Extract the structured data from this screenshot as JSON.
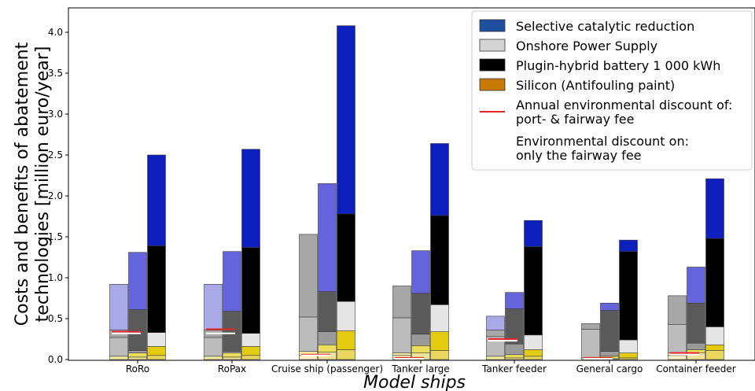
{
  "chart_data": {
    "type": "bar",
    "title": "",
    "xlabel": "Model ships",
    "ylabel_lines": [
      "Costs and benefits of abatement",
      "technologies [million euro/year]"
    ],
    "ylim": [
      0,
      4.15
    ],
    "yticks": [
      0.0,
      0.5,
      1.0,
      1.5,
      2.0,
      2.5,
      3.0,
      3.5,
      4.0
    ],
    "ytick_labels": [
      "0.0",
      "0.5",
      "1.0",
      "1.5",
      "2.0",
      "2.5",
      "3.0",
      "3.5",
      "4.0"
    ],
    "grid": false,
    "legend_position": "top-right",
    "categories": [
      "RoRo",
      "RoPax",
      "Cruise ship (passenger)",
      "Tanker large",
      "Tanker feeder",
      "General cargo",
      "Container feeder"
    ],
    "bar_order": [
      "Silicon (Antifouling paint)",
      "Onshore Power Supply",
      "Plugin-hybrid battery 1 000 kWh",
      "Selective catalytic reduction"
    ],
    "series": [
      {
        "name": "Silicon (Antifouling paint)",
        "segments": [
          {
            "tones": [
              "#f6f0c2",
              "#efe39a",
              "#e8d65e"
            ],
            "tops": [
              [
                0.0,
                0.03,
                0.05
              ],
              [
                0.0,
                0.03,
                0.05
              ],
              [
                0.05,
                0.09,
                0.12
              ],
              [
                0.05,
                0.08,
                0.11
              ],
              [
                0.0,
                0.02,
                0.04
              ],
              [
                0.0,
                0.01,
                0.02
              ],
              [
                0.05,
                0.08,
                0.11
              ]
            ]
          },
          {
            "tones": [
              "#f3ec9e",
              "#ecde5a",
              "#e3cb10"
            ],
            "tops": [
              [
                0.04,
                0.08,
                0.16
              ],
              [
                0.04,
                0.08,
                0.16
              ],
              [
                0.1,
                0.18,
                0.35
              ],
              [
                0.08,
                0.17,
                0.34
              ],
              [
                0.04,
                0.06,
                0.12
              ],
              [
                0.02,
                0.04,
                0.08
              ],
              [
                0.08,
                0.12,
                0.18
              ]
            ]
          }
        ]
      },
      {
        "name": "Onshore Power Supply",
        "segments": [
          {
            "tones": [
              "#bcbcbc",
              "#9a9a9a",
              "#e5e5e5"
            ],
            "tops": [
              [
                0.27,
                0.11,
                0.33
              ],
              [
                0.27,
                0.1,
                0.32
              ],
              [
                0.52,
                0.34,
                0.71
              ],
              [
                0.51,
                0.31,
                0.67
              ],
              [
                0.28,
                0.19,
                0.3
              ],
              [
                0.37,
                0.1,
                0.24
              ],
              [
                0.43,
                0.2,
                0.4
              ]
            ]
          },
          {
            "tones": [
              "#a7a7a7",
              "#5a5a5a",
              "#000000"
            ],
            "tops": [
              [
                0.36,
                0.61,
                1.39
              ],
              [
                0.36,
                0.59,
                1.37
              ],
              [
                1.53,
                0.83,
                1.78
              ],
              [
                0.9,
                0.81,
                1.76
              ],
              [
                0.36,
                0.62,
                1.38
              ],
              [
                0.44,
                0.6,
                1.32
              ],
              [
                0.78,
                0.69,
                1.48
              ]
            ]
          }
        ]
      },
      {
        "name": "Plugin-hybrid battery 1 000 kWh",
        "segments": [
          {
            "tones": [
              "#a9a9e8",
              "#6464dc",
              "#0d1fbd"
            ],
            "tops": [
              [
                0.92,
                1.31,
                2.5
              ],
              [
                0.92,
                1.32,
                2.57
              ],
              [
                1.53,
                2.15,
                4.08
              ],
              [
                0.9,
                1.33,
                2.64
              ],
              [
                0.53,
                0.82,
                1.7
              ],
              [
                0.44,
                0.69,
                1.46
              ],
              [
                0.78,
                1.13,
                2.21
              ]
            ]
          }
        ]
      },
      {
        "name": "Selective catalytic reduction",
        "segments": []
      }
    ],
    "discount_lines": [
      {
        "name": "Annual environmental discount of: port- & fairway fee",
        "color": "#e8252b",
        "values": [
          0.34,
          0.37,
          0.06,
          0.02,
          0.25,
          0.02,
          0.08
        ]
      },
      {
        "name": "Environmental discount on: only the fairway fee",
        "color": "#ffffff",
        "values": [
          0.32,
          0.32,
          0.05,
          0.01,
          0.23,
          0.01,
          0.06
        ]
      }
    ]
  },
  "legend": {
    "items": [
      {
        "swatch": "#1f50a0",
        "label_lines": [
          "Selective catalytic reduction"
        ]
      },
      {
        "swatch": "#d4d4d4",
        "label_lines": [
          "Onshore Power Supply"
        ]
      },
      {
        "swatch": "#000000",
        "label_lines": [
          "Plugin-hybrid battery 1 000 kWh"
        ]
      },
      {
        "swatch": "#c77a06",
        "label_lines": [
          "Silicon (Antifouling paint)"
        ]
      },
      {
        "line": "#e8252b",
        "label_lines": [
          "Annual environmental discount of:",
          " port- & fairway fee"
        ]
      },
      {
        "line": "#ffffff",
        "label_lines": [
          "Environmental discount on:",
          " only the fairway fee"
        ]
      }
    ]
  }
}
